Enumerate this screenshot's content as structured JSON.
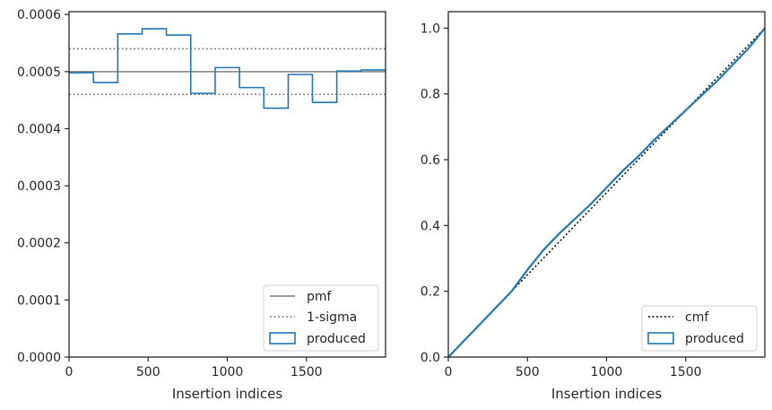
{
  "chart_data": [
    {
      "type": "line",
      "xlabel": "Insertion indices",
      "ylabel": "",
      "xlim": [
        0,
        2000
      ],
      "ylim": [
        0,
        0.000605
      ],
      "xticks": [
        0,
        500,
        1000,
        1500
      ],
      "xtick_labels": [
        "0",
        "500",
        "1000",
        "1500"
      ],
      "yticks": [
        0,
        0.0001,
        0.0002,
        0.0003,
        0.0004,
        0.0005,
        0.0006
      ],
      "ytick_labels": [
        "0.0000",
        "0.0001",
        "0.0002",
        "0.0003",
        "0.0004",
        "0.0005",
        "0.0006"
      ],
      "legend_position": "bottom-right",
      "grid": false,
      "series": [
        {
          "name": "pmf",
          "kind": "hline",
          "value": 0.0005,
          "color": "#7f7f7f",
          "style": "solid"
        },
        {
          "name": "1-sigma",
          "kind": "hlines",
          "values": [
            0.00054,
            0.00046
          ],
          "color": "#7f7f7f",
          "style": "dotted"
        },
        {
          "name": "produced",
          "kind": "step-histogram",
          "color": "#1f77b4",
          "bin_edges": [
            0,
            154,
            308,
            462,
            615,
            769,
            923,
            1077,
            1231,
            1385,
            1538,
            1692,
            1846,
            2000
          ],
          "values": [
            0.000498,
            0.000481,
            0.000566,
            0.000575,
            0.000564,
            0.000462,
            0.000507,
            0.000472,
            0.000436,
            0.000495,
            0.000446,
            0.000501,
            0.000503
          ]
        }
      ]
    },
    {
      "type": "line",
      "xlabel": "Insertion indices",
      "ylabel": "",
      "xlim": [
        0,
        2000
      ],
      "ylim": [
        0,
        1.05
      ],
      "xticks": [
        0,
        500,
        1000,
        1500
      ],
      "xtick_labels": [
        "0",
        "500",
        "1000",
        "1500"
      ],
      "yticks": [
        0,
        0.2,
        0.4,
        0.6,
        0.8,
        1.0
      ],
      "ytick_labels": [
        "0.0",
        "0.2",
        "0.4",
        "0.6",
        "0.8",
        "1.0"
      ],
      "legend_position": "bottom-right",
      "grid": false,
      "series": [
        {
          "name": "cmf",
          "color": "#000000",
          "style": "dotted",
          "x": [
            0,
            2000
          ],
          "y": [
            0,
            1.0
          ]
        },
        {
          "name": "produced",
          "color": "#1f77b4",
          "style": "solid",
          "x": [
            0,
            100,
            200,
            300,
            400,
            500,
            600,
            700,
            800,
            900,
            1000,
            1100,
            1200,
            1300,
            1400,
            1500,
            1600,
            1700,
            1800,
            1900,
            2000
          ],
          "y": [
            0,
            0.05,
            0.1,
            0.15,
            0.2,
            0.265,
            0.325,
            0.375,
            0.42,
            0.465,
            0.515,
            0.565,
            0.61,
            0.66,
            0.705,
            0.75,
            0.795,
            0.84,
            0.89,
            0.94,
            1.0
          ]
        }
      ]
    }
  ]
}
